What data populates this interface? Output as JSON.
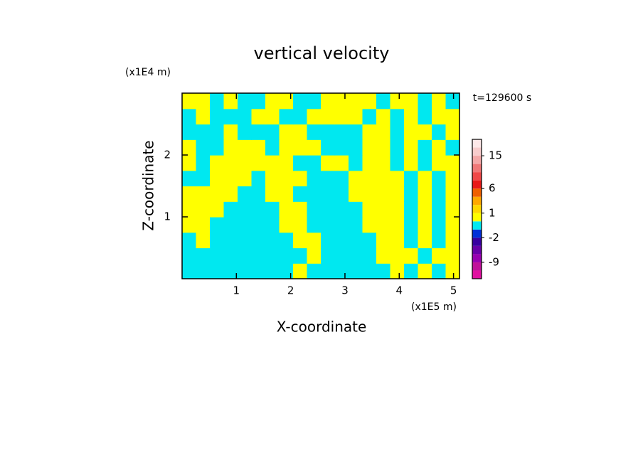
{
  "chart_data": {
    "type": "contour",
    "title": "vertical velocity",
    "x_label": "X-coordinate",
    "y_label": "Z-coordinate",
    "x_unit": "(x1E5 m)",
    "y_unit": "(x1E4 m)",
    "annotation": "t=129600 s",
    "xlim": [
      0,
      5.11
    ],
    "ylim": [
      0,
      3
    ],
    "xticks": [
      1,
      2,
      3,
      4,
      5
    ],
    "yticks": [
      1,
      2
    ],
    "z": [
      [
        -0.5,
        -0.5,
        -0.5,
        -0.5,
        -0.5,
        -0.5,
        -0.5,
        -0.5,
        0.5,
        -0.5,
        -0.5,
        -0.5,
        -0.5,
        -0.5,
        -0.5,
        0.5,
        -0.5,
        0.5,
        -0.5,
        0.5
      ],
      [
        -0.5,
        -0.5,
        -0.5,
        -0.5,
        -0.5,
        -0.5,
        -0.5,
        -0.5,
        -0.5,
        0.5,
        -0.5,
        -0.5,
        -0.5,
        -0.5,
        0.5,
        0.5,
        0.5,
        -0.5,
        0.5,
        0.5
      ],
      [
        -0.5,
        0.5,
        -0.5,
        -0.5,
        -0.5,
        -0.5,
        -0.5,
        -0.5,
        0.5,
        0.5,
        -0.5,
        -0.5,
        -0.5,
        -0.5,
        0.5,
        0.5,
        -0.5,
        0.5,
        -0.5,
        0.5
      ],
      [
        0.5,
        0.5,
        -0.5,
        -0.5,
        -0.5,
        -0.5,
        -0.5,
        0.5,
        0.5,
        -0.5,
        -0.5,
        -0.5,
        -0.5,
        0.5,
        0.5,
        0.5,
        -0.5,
        0.5,
        -0.5,
        0.5
      ],
      [
        0.5,
        0.5,
        0.5,
        -0.5,
        -0.5,
        -0.5,
        -0.5,
        0.5,
        0.5,
        -0.5,
        -0.5,
        -0.5,
        -0.5,
        0.5,
        0.5,
        0.5,
        -0.5,
        0.5,
        -0.5,
        0.5
      ],
      [
        0.5,
        0.5,
        0.5,
        0.5,
        -0.5,
        -0.5,
        0.5,
        0.5,
        -0.5,
        -0.5,
        -0.5,
        -0.5,
        0.5,
        0.5,
        0.5,
        0.5,
        -0.5,
        0.5,
        -0.5,
        0.5
      ],
      [
        -0.5,
        -0.5,
        0.5,
        0.5,
        0.5,
        -0.5,
        0.5,
        0.5,
        0.5,
        -0.5,
        -0.5,
        -0.5,
        0.5,
        0.5,
        0.5,
        0.5,
        -0.5,
        0.5,
        -0.5,
        0.5
      ],
      [
        0.5,
        -0.5,
        0.5,
        0.5,
        0.5,
        0.5,
        0.5,
        0.5,
        -0.5,
        -0.5,
        0.5,
        0.5,
        -0.5,
        0.5,
        0.5,
        -0.5,
        0.5,
        -0.5,
        0.5,
        0.5
      ],
      [
        0.5,
        -0.5,
        -0.5,
        0.5,
        0.5,
        0.5,
        -0.5,
        0.5,
        0.5,
        0.5,
        -0.5,
        -0.5,
        -0.5,
        0.5,
        0.5,
        -0.5,
        0.5,
        -0.5,
        0.5,
        -0.5
      ],
      [
        -0.5,
        -0.5,
        -0.5,
        0.5,
        -0.5,
        -0.5,
        -0.5,
        0.5,
        0.5,
        -0.5,
        -0.5,
        -0.5,
        -0.5,
        0.5,
        0.5,
        -0.5,
        0.5,
        0.5,
        -0.5,
        0.5
      ],
      [
        -0.5,
        0.5,
        -0.5,
        -0.5,
        -0.5,
        0.5,
        0.5,
        -0.5,
        -0.5,
        0.5,
        0.5,
        0.5,
        0.5,
        -0.5,
        0.5,
        -0.5,
        0.5,
        -0.5,
        0.5,
        0.5
      ],
      [
        0.5,
        0.5,
        -0.5,
        0.5,
        -0.5,
        -0.5,
        0.5,
        0.5,
        -0.5,
        -0.5,
        0.5,
        0.5,
        0.5,
        0.5,
        -0.5,
        0.5,
        0.5,
        -0.5,
        0.5,
        -0.5
      ]
    ],
    "levels": [
      -15,
      -12,
      -9,
      -6,
      -4,
      -2,
      -1,
      0,
      1,
      2,
      4,
      6,
      8,
      10,
      12,
      15,
      20,
      25
    ],
    "level_colors": [
      "#e010a0",
      "#c0109a",
      "#9800b0",
      "#6800a8",
      "#3800a0",
      "#0030d8",
      "#00e8f0",
      "#ffff00",
      "#ffd800",
      "#ffa800",
      "#f06000",
      "#e81818",
      "#f04848",
      "#f07878",
      "#f4a8a8",
      "#f8cccc",
      "#fde8e8"
    ],
    "colorbar_ticks": [
      -9,
      -2,
      1,
      6,
      15
    ]
  }
}
